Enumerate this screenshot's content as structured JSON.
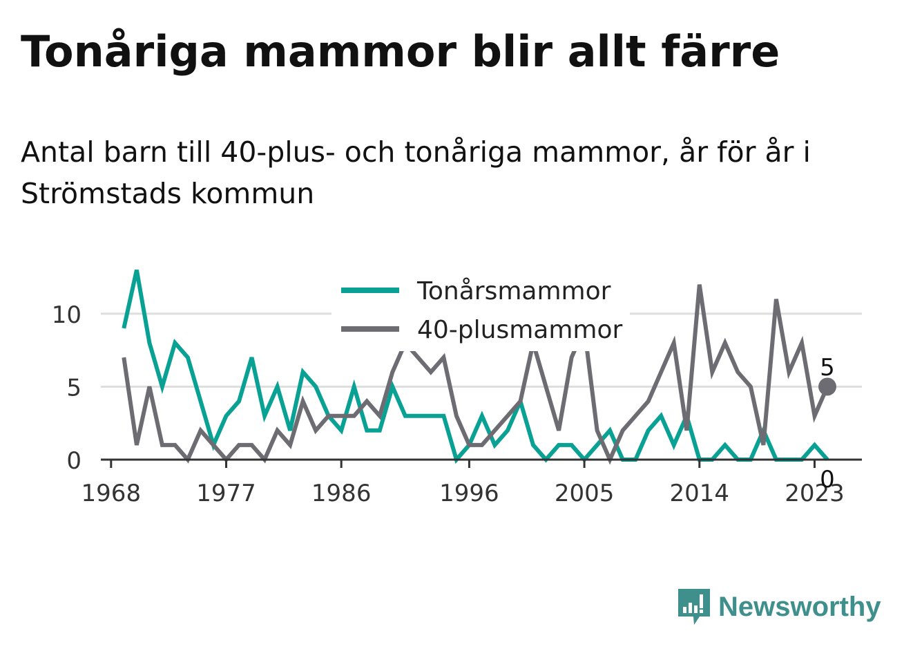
{
  "header": {
    "title": "Tonåriga mammor blir allt färre",
    "subtitle": "Antal barn till 40-plus- och tonåriga mammor, år för år i Strömstads kommun"
  },
  "brand": {
    "name": "Newsworthy",
    "icon": "newsworthy-logo-icon",
    "color": "#3f8f8c"
  },
  "chart_data": {
    "type": "line",
    "title": "",
    "xlabel": "",
    "ylabel": "",
    "xlim": [
      1967.2,
      2026.7
    ],
    "ylim": [
      0,
      13.5
    ],
    "xticks": [
      1968,
      1977,
      1986,
      1996,
      2005,
      2014,
      2023
    ],
    "yticks": [
      0,
      5,
      10
    ],
    "grid": true,
    "legend_position": "top-center",
    "x": [
      1969,
      1970,
      1971,
      1972,
      1973,
      1974,
      1975,
      1976,
      1977,
      1978,
      1979,
      1980,
      1981,
      1982,
      1983,
      1984,
      1985,
      1986,
      1987,
      1988,
      1989,
      1990,
      1991,
      1992,
      1993,
      1994,
      1995,
      1996,
      1997,
      1998,
      1999,
      2000,
      2001,
      2002,
      2003,
      2004,
      2005,
      2006,
      2007,
      2008,
      2009,
      2010,
      2011,
      2012,
      2013,
      2014,
      2015,
      2016,
      2017,
      2018,
      2019,
      2020,
      2021,
      2022,
      2023,
      2024
    ],
    "series": [
      {
        "name": "Tonårsmammor",
        "color": "#0aa195",
        "values": [
          9,
          13,
          8,
          5,
          8,
          7,
          4,
          1,
          3,
          4,
          7,
          3,
          5,
          2,
          6,
          5,
          3,
          2,
          5,
          2,
          2,
          5,
          3,
          3,
          3,
          3,
          0,
          1,
          3,
          1,
          2,
          4,
          1,
          0,
          1,
          1,
          0,
          1,
          2,
          0,
          0,
          2,
          3,
          1,
          3,
          0,
          0,
          1,
          0,
          0,
          2,
          0,
          0,
          0,
          1,
          0
        ],
        "end_label": "0"
      },
      {
        "name": "40-plusmammor",
        "color": "#6d6c72",
        "values": [
          7,
          1,
          5,
          1,
          1,
          0,
          2,
          1,
          0,
          1,
          1,
          0,
          2,
          1,
          4,
          2,
          3,
          3,
          3,
          4,
          3,
          6,
          8,
          7,
          6,
          7,
          3,
          1,
          1,
          2,
          3,
          4,
          8,
          5,
          2,
          7,
          9,
          2,
          0,
          2,
          3,
          4,
          6,
          8,
          2,
          12,
          6,
          8,
          6,
          5,
          1,
          11,
          6,
          8,
          3,
          5
        ],
        "end_label": "5"
      }
    ]
  }
}
